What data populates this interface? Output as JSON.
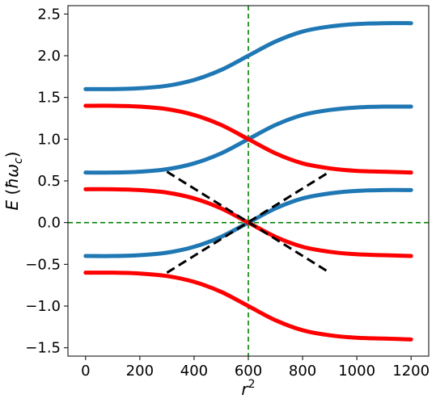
{
  "chart_data": {
    "type": "line",
    "title": "",
    "xlabel_var": "r",
    "xlabel_exp": "2",
    "ylabel_var": "E",
    "ylabel_unit_open": " (",
    "ylabel_unit_symbol": "ħω",
    "ylabel_unit_sub": "c",
    "ylabel_unit_close": ")",
    "xlim": [
      -65,
      1265
    ],
    "ylim": [
      -1.6,
      2.6
    ],
    "x_ticks": [
      0,
      200,
      400,
      600,
      800,
      1000,
      1200
    ],
    "y_ticks": [
      -1.5,
      -1.0,
      -0.5,
      0.0,
      0.5,
      1.0,
      1.5,
      2.0,
      2.5
    ],
    "x_tick_labels": [
      "0",
      "200",
      "400",
      "600",
      "800",
      "1000",
      "1200"
    ],
    "y_tick_labels": [
      "−1.5",
      "−1.0",
      "−0.5",
      "0.0",
      "0.5",
      "1.0",
      "1.5",
      "2.0",
      "2.5"
    ],
    "grid": false,
    "colors": {
      "blue": "#1f77b4",
      "red": "#ff0000",
      "guide": "#008000",
      "dashed": "#000000"
    },
    "series": [
      {
        "color": "blue",
        "x": [
          0,
          100,
          200,
          300,
          400,
          500,
          600,
          700,
          800,
          900,
          1000,
          1100,
          1200
        ],
        "y": [
          1.6,
          1.6,
          1.61,
          1.64,
          1.71,
          1.83,
          2.0,
          2.17,
          2.29,
          2.35,
          2.38,
          2.39,
          2.39
        ]
      },
      {
        "color": "blue",
        "x": [
          0,
          100,
          200,
          300,
          400,
          500,
          600,
          700,
          800,
          900,
          1000,
          1100,
          1200
        ],
        "y": [
          0.6,
          0.6,
          0.61,
          0.64,
          0.71,
          0.83,
          1.0,
          1.17,
          1.29,
          1.35,
          1.38,
          1.39,
          1.39
        ]
      },
      {
        "color": "blue",
        "x": [
          0,
          100,
          200,
          300,
          400,
          500,
          600,
          700,
          800,
          900,
          1000,
          1100,
          1200
        ],
        "y": [
          -0.4,
          -0.4,
          -0.39,
          -0.36,
          -0.29,
          -0.17,
          0.0,
          0.17,
          0.29,
          0.35,
          0.38,
          0.39,
          0.39
        ]
      },
      {
        "color": "red",
        "x": [
          0,
          100,
          200,
          300,
          400,
          500,
          600,
          700,
          800,
          900,
          1000,
          1100,
          1200
        ],
        "y": [
          1.4,
          1.4,
          1.39,
          1.36,
          1.29,
          1.17,
          1.0,
          0.83,
          0.71,
          0.65,
          0.62,
          0.61,
          0.6
        ]
      },
      {
        "color": "red",
        "x": [
          0,
          100,
          200,
          300,
          400,
          500,
          600,
          700,
          800,
          900,
          1000,
          1100,
          1200
        ],
        "y": [
          0.4,
          0.4,
          0.39,
          0.36,
          0.29,
          0.17,
          0.0,
          -0.17,
          -0.29,
          -0.35,
          -0.38,
          -0.39,
          -0.4
        ]
      },
      {
        "color": "red",
        "x": [
          0,
          100,
          200,
          300,
          400,
          500,
          600,
          700,
          800,
          900,
          1000,
          1100,
          1200
        ],
        "y": [
          -0.6,
          -0.6,
          -0.61,
          -0.64,
          -0.71,
          -0.83,
          -1.0,
          -1.17,
          -1.29,
          -1.35,
          -1.38,
          -1.39,
          -1.4
        ]
      }
    ],
    "reference_lines": [
      {
        "orientation": "vertical",
        "value": 600,
        "color": "guide",
        "style": "dashed"
      },
      {
        "orientation": "horizontal",
        "value": 0,
        "color": "guide",
        "style": "dashed"
      }
    ],
    "dashed_lines": [
      {
        "x": [
          300,
          890
        ],
        "y": [
          0.61,
          -0.58
        ],
        "color": "dashed"
      },
      {
        "x": [
          300,
          890
        ],
        "y": [
          -0.6,
          0.59
        ],
        "color": "dashed"
      }
    ]
  }
}
